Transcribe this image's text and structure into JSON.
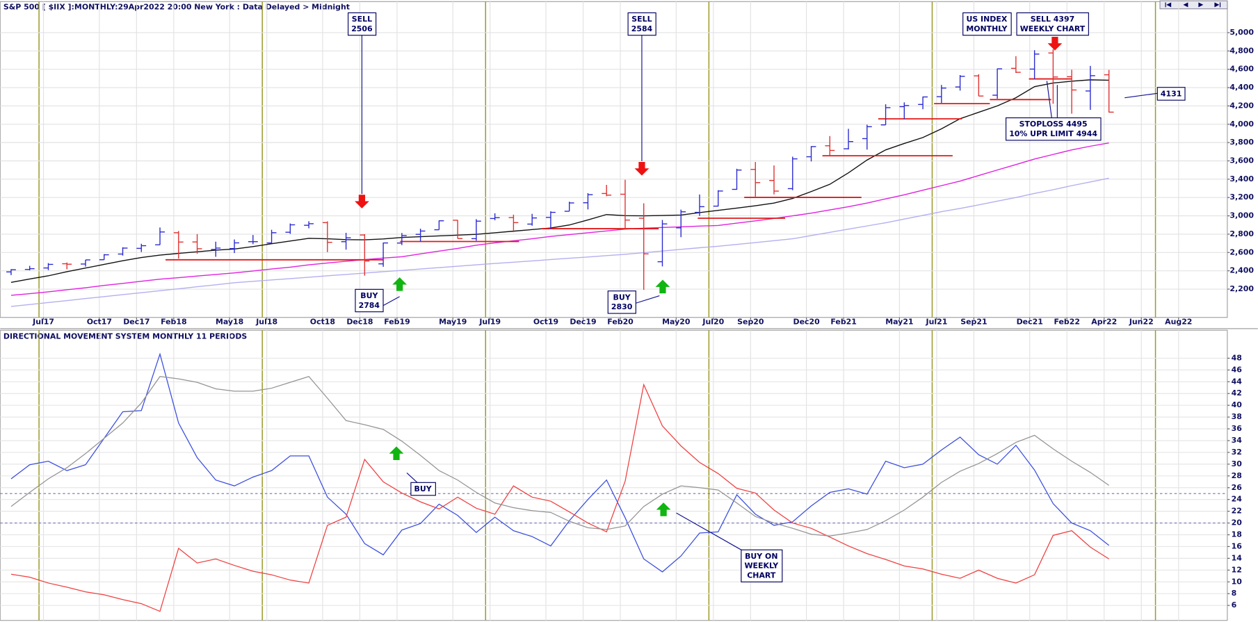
{
  "chart_data": [
    {
      "type": "ohlc",
      "title": "S&P 500 [ $IIX ]:MONTHLY:29Apr2022 20:00 New York : Data Delayed > Midnight",
      "categories": [
        null,
        null,
        "Jul17",
        null,
        null,
        "Oct17",
        null,
        "Dec17",
        null,
        "Feb18",
        null,
        null,
        "May18",
        null,
        "Jul18",
        null,
        null,
        "Oct18",
        null,
        "Dec18",
        null,
        "Feb19",
        null,
        null,
        "May19",
        null,
        "Jul19",
        null,
        null,
        "Oct19",
        null,
        "Dec19",
        null,
        "Feb20",
        null,
        null,
        "May20",
        null,
        "Jul20",
        null,
        "Sep20",
        null,
        null,
        "Dec20",
        null,
        "Feb21",
        null,
        null,
        "May21",
        null,
        "Jul21",
        null,
        "Sep21",
        null,
        null,
        "Dec21",
        null,
        "Feb22",
        null,
        "Apr22",
        null,
        "Jun22",
        null,
        "Aug22"
      ],
      "open": [
        2388,
        2415,
        2431,
        2477,
        2474,
        2521,
        2583,
        2645,
        2684,
        2816,
        2715,
        2633,
        2643,
        2718,
        2704,
        2821,
        2897,
        2926,
        2718,
        2791,
        2476,
        2703,
        2798,
        2848,
        2952,
        2751,
        2971,
        2981,
        2910,
        2983,
        3050,
        3143,
        3244,
        3236,
        2974,
        2499,
        2869,
        3038,
        3106,
        3289,
        3507,
        3386,
        3297,
        3645,
        3765,
        3732,
        3843,
        3993,
        4192,
        4216,
        4301,
        4407,
        4528,
        4317,
        4610,
        4602,
        4778,
        4519,
        4363,
        4540,
        null,
        null,
        null,
        null
      ],
      "high": [
        2418,
        2454,
        2484,
        2491,
        2519,
        2582,
        2657,
        2695,
        2873,
        2835,
        2801,
        2718,
        2742,
        2791,
        2848,
        2917,
        2941,
        2940,
        2815,
        2800,
        2708,
        2813,
        2860,
        2950,
        2954,
        2964,
        3028,
        3013,
        3022,
        3050,
        3154,
        3248,
        3338,
        3394,
        3137,
        2955,
        3068,
        3233,
        3280,
        3514,
        3588,
        3550,
        3646,
        3761,
        3871,
        3950,
        3995,
        4218,
        4239,
        4302,
        4429,
        4537,
        4546,
        4608,
        4743,
        4808,
        4819,
        4595,
        4637,
        4593,
        null,
        null,
        null,
        null
      ],
      "low": [
        2353,
        2405,
        2407,
        2417,
        2446,
        2520,
        2566,
        2605,
        2683,
        2533,
        2586,
        2553,
        2594,
        2691,
        2699,
        2803,
        2864,
        2604,
        2631,
        2347,
        2444,
        2681,
        2723,
        2848,
        2751,
        2729,
        2952,
        2822,
        2892,
        2855,
        3050,
        3070,
        3214,
        2855,
        2192,
        2448,
        2767,
        2999,
        3102,
        3285,
        3210,
        3234,
        3280,
        3594,
        3662,
        3725,
        3723,
        3992,
        4056,
        4164,
        4233,
        4367,
        4306,
        4279,
        4560,
        4495,
        4223,
        4115,
        4157,
        4128,
        null,
        null,
        null,
        null
      ],
      "close": [
        2412,
        2423,
        2470,
        2472,
        2519,
        2575,
        2648,
        2674,
        2824,
        2714,
        2641,
        2648,
        2705,
        2718,
        2816,
        2902,
        2914,
        2711,
        2760,
        2507,
        2704,
        2784,
        2834,
        2946,
        2752,
        2942,
        2980,
        2926,
        2977,
        3038,
        3141,
        3231,
        3226,
        2954,
        2585,
        2912,
        3044,
        3100,
        3271,
        3500,
        3363,
        3270,
        3622,
        3756,
        3714,
        3811,
        3973,
        4181,
        4204,
        4298,
        4395,
        4523,
        4308,
        4605,
        4567,
        4766,
        4516,
        4374,
        4530,
        4132,
        null,
        null,
        null,
        null
      ],
      "up_color": "#2a2ad0",
      "down_color": "#e03030",
      "series": [
        {
          "color": "#111111",
          "values": [
            2274,
            2310,
            2345,
            2390,
            2430,
            2470,
            2510,
            2545,
            2571,
            2590,
            2608,
            2625,
            2638,
            2665,
            2695,
            2725,
            2755,
            2750,
            2740,
            2738,
            2748,
            2764,
            2772,
            2781,
            2790,
            2798,
            2815,
            2833,
            2850,
            2868,
            2900,
            2955,
            3015,
            3002,
            3000,
            3004,
            3009,
            3035,
            3060,
            3085,
            3110,
            3140,
            3190,
            3265,
            3345,
            3470,
            3610,
            3720,
            3790,
            3855,
            3950,
            4060,
            4130,
            4200,
            4290,
            4410,
            4450,
            4470,
            4485,
            4480,
            null,
            null,
            null,
            null
          ]
        },
        {
          "color": "#e020e0",
          "values": [
            2133,
            2150,
            2170,
            2193,
            2215,
            2240,
            2262,
            2286,
            2309,
            2325,
            2343,
            2360,
            2377,
            2398,
            2420,
            2440,
            2465,
            2485,
            2505,
            2522,
            2540,
            2554,
            2585,
            2615,
            2645,
            2680,
            2705,
            2728,
            2750,
            2775,
            2795,
            2815,
            2835,
            2855,
            2865,
            2873,
            2880,
            2888,
            2895,
            2920,
            2945,
            2972,
            3000,
            3030,
            3065,
            3100,
            3140,
            3185,
            3230,
            3280,
            3330,
            3380,
            3440,
            3500,
            3560,
            3620,
            3670,
            3720,
            3760,
            3796,
            null,
            null,
            null,
            null
          ]
        },
        {
          "color": "#b4aef0",
          "values": [
            2011,
            2032,
            2054,
            2075,
            2097,
            2118,
            2140,
            2161,
            2183,
            2204,
            2226,
            2247,
            2270,
            2285,
            2300,
            2315,
            2330,
            2345,
            2360,
            2375,
            2390,
            2405,
            2420,
            2435,
            2450,
            2465,
            2480,
            2494,
            2508,
            2523,
            2537,
            2551,
            2566,
            2580,
            2598,
            2616,
            2634,
            2652,
            2668,
            2688,
            2708,
            2729,
            2750,
            2785,
            2820,
            2855,
            2890,
            2925,
            2965,
            3005,
            3045,
            3080,
            3120,
            3160,
            3200,
            3245,
            3285,
            3330,
            3370,
            3411,
            null,
            null,
            null,
            null
          ]
        }
      ],
      "levels": [
        {
          "value": 2520,
          "from": 8.3,
          "to": 20.0
        },
        {
          "value": 2720,
          "from": 20.9,
          "to": 27.3
        },
        {
          "value": 2860,
          "from": 28.5,
          "to": 34.8
        },
        {
          "value": 2974,
          "from": 36.9,
          "to": 41.6
        },
        {
          "value": 3201,
          "from": 39.4,
          "to": 45.7
        },
        {
          "value": 3656,
          "from": 43.6,
          "to": 50.6
        },
        {
          "value": 4059,
          "from": 46.6,
          "to": 51.1
        },
        {
          "value": 4225,
          "from": 49.6,
          "to": 52.6
        },
        {
          "value": 4269,
          "from": 52.6,
          "to": 55.9
        },
        {
          "value": 4495,
          "from": 54.7,
          "to": 57.0
        }
      ],
      "level_color": "#e01818",
      "ylim": [
        1900,
        5330
      ],
      "yticks": [
        {
          "value": 2200,
          "label": "2,200"
        },
        {
          "value": 2400,
          "label": "2,400"
        },
        {
          "value": 2600,
          "label": "2,600"
        },
        {
          "value": 2800,
          "label": "2,800"
        },
        {
          "value": 3000,
          "label": "3,000"
        },
        {
          "value": 3200,
          "label": "3,200"
        },
        {
          "value": 3400,
          "label": "3,400"
        },
        {
          "value": 3600,
          "label": "3,600"
        },
        {
          "value": 3800,
          "label": "3,800"
        },
        {
          "value": 4000,
          "label": "4,000"
        },
        {
          "value": 4200,
          "label": "4,200"
        },
        {
          "value": 4400,
          "label": "4,400"
        },
        {
          "value": 4600,
          "label": "4,600"
        },
        {
          "value": 4800,
          "label": "4,800"
        },
        {
          "value": 5000,
          "label": "5,000"
        }
      ],
      "grid": true,
      "annotations": [
        {
          "lines": [
            "SELL",
            "2506"
          ]
        },
        {
          "lines": [
            "SELL",
            "2584"
          ]
        },
        {
          "lines": [
            "US INDEX",
            "MONTHLY"
          ]
        },
        {
          "lines": [
            "SELL 4397",
            "WEEKLY CHART"
          ]
        },
        {
          "lines": [
            "BUY",
            "2784"
          ]
        },
        {
          "lines": [
            "BUY",
            "2830"
          ]
        },
        {
          "lines": [
            "STOPLOSS 4495",
            "10% UPR LIMIT 4944"
          ]
        },
        {
          "lines": [
            "4131"
          ]
        }
      ]
    },
    {
      "type": "line",
      "title": "DIRECTIONAL MOVEMENT SYSTEM MONTHLY 11 PERIODS",
      "series": [
        {
          "color": "#3a4ee0",
          "values": [
            27.5,
            29.9,
            30.5,
            28.9,
            29.9,
            34.4,
            38.9,
            39.1,
            48.7,
            37,
            31.1,
            27.3,
            26.3,
            27.8,
            28.9,
            31.4,
            31.4,
            24.4,
            21.5,
            16.5,
            14.6,
            18.8,
            19.9,
            23.2,
            21.3,
            18.4,
            21.0,
            18.7,
            17.7,
            16.1,
            20.4,
            24,
            27.3,
            20.9,
            13.9,
            11.7,
            14.4,
            18.3,
            18.5,
            24.8,
            21.5,
            19.6,
            20.2,
            22.9,
            25.2,
            25.8,
            24.9,
            30.5,
            29.4,
            30,
            32.4,
            34.6,
            31.6,
            30,
            33.2,
            29,
            23.3,
            20,
            18.7,
            16.2,
            null,
            null,
            null,
            null
          ]
        },
        {
          "color": "#f04040",
          "values": [
            11.3,
            10.8,
            9.8,
            9.1,
            8.3,
            7.8,
            7,
            6.3,
            5,
            15.7,
            13.2,
            13.9,
            12.8,
            11.8,
            11.2,
            10.3,
            9.8,
            19.6,
            21,
            30.8,
            27,
            25.1,
            23.6,
            22.4,
            24.4,
            22.5,
            21.5,
            26.3,
            24.4,
            23.7,
            21.9,
            20,
            18.5,
            27.1,
            43.5,
            36.5,
            33.1,
            30.3,
            28.4,
            25.9,
            25.1,
            22.2,
            20,
            19.1,
            17.6,
            16.1,
            14.8,
            13.8,
            12.7,
            12.2,
            11.3,
            10.6,
            12,
            10.6,
            9.8,
            11.2,
            17.9,
            18.7,
            15.9,
            13.9,
            null,
            null,
            null,
            null
          ]
        },
        {
          "color": "#949494",
          "values": [
            22.8,
            25.2,
            27.5,
            29.4,
            31.8,
            34.4,
            37,
            40.4,
            44.9,
            44.5,
            43.9,
            42.8,
            42.4,
            42.4,
            42.9,
            43.9,
            44.9,
            41.2,
            37.4,
            36.7,
            35.9,
            33.9,
            31.5,
            28.9,
            27.3,
            25.2,
            23.4,
            22.6,
            22.1,
            21.8,
            20.3,
            19.2,
            18.9,
            19.5,
            22.8,
            24.9,
            26.3,
            26,
            25.6,
            23.4,
            21.1,
            20,
            19.1,
            18.1,
            17.8,
            18.3,
            18.9,
            20.4,
            22.2,
            24.4,
            26.9,
            28.8,
            30.1,
            31.8,
            33.7,
            34.9,
            32.6,
            30.5,
            28.6,
            26.4,
            null,
            null,
            null,
            null
          ]
        }
      ],
      "reference_lines": [
        25,
        20
      ],
      "ylim": [
        4,
        50.3
      ],
      "yticks": [
        6,
        8,
        10,
        12,
        14,
        16,
        18,
        20,
        22,
        24,
        26,
        28,
        30,
        32,
        34,
        36,
        38,
        40,
        42,
        44,
        46,
        48
      ],
      "grid": true,
      "annotations": [
        {
          "lines": [
            "BUY"
          ]
        },
        {
          "lines": [
            "BUY ON",
            "WEEKLY",
            "CHART"
          ]
        }
      ]
    }
  ]
}
